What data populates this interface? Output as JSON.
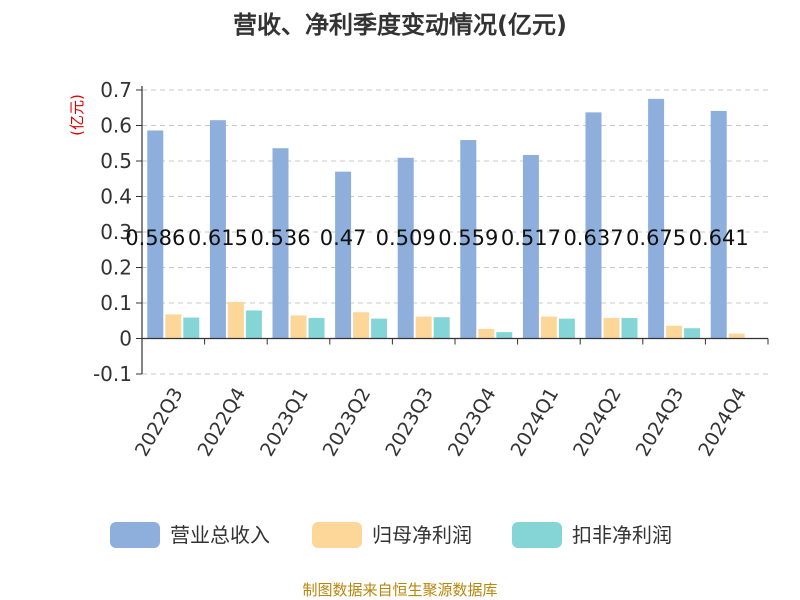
{
  "chart_data": {
    "type": "bar",
    "title": "营收、净利季度变动情况(亿元)",
    "unit_label": "(亿元)",
    "categories": [
      "2022Q3",
      "2022Q4",
      "2023Q1",
      "2023Q2",
      "2023Q3",
      "2023Q4",
      "2024Q1",
      "2024Q2",
      "2024Q3",
      "2024Q4"
    ],
    "series": [
      {
        "name": "营业总收入",
        "color": "#8eaedc",
        "values": [
          0.586,
          0.615,
          0.536,
          0.47,
          0.509,
          0.559,
          0.517,
          0.637,
          0.675,
          0.641
        ],
        "labeled": true
      },
      {
        "name": "归母净利润",
        "color": "#fdd799",
        "values": [
          0.068,
          0.103,
          0.065,
          0.074,
          0.062,
          0.027,
          0.062,
          0.058,
          0.036,
          0.014
        ],
        "labeled": false
      },
      {
        "name": "扣非净利润",
        "color": "#85d5d7",
        "values": [
          0.059,
          0.079,
          0.058,
          0.056,
          0.06,
          0.018,
          0.056,
          0.058,
          0.029,
          0.0
        ],
        "labeled": false
      }
    ],
    "y_ticks": [
      "0.7",
      "0.6",
      "0.5",
      "0.4",
      "0.3",
      "0.2",
      "0.1",
      "0",
      "-0.1"
    ],
    "y_tick_values": [
      0.7,
      0.6,
      0.5,
      0.4,
      0.3,
      0.2,
      0.1,
      0,
      -0.1
    ],
    "ylim": [
      -0.1,
      0.7
    ],
    "grid": true,
    "legend_position": "bottom"
  },
  "source": "制图数据来自恒生聚源数据库"
}
